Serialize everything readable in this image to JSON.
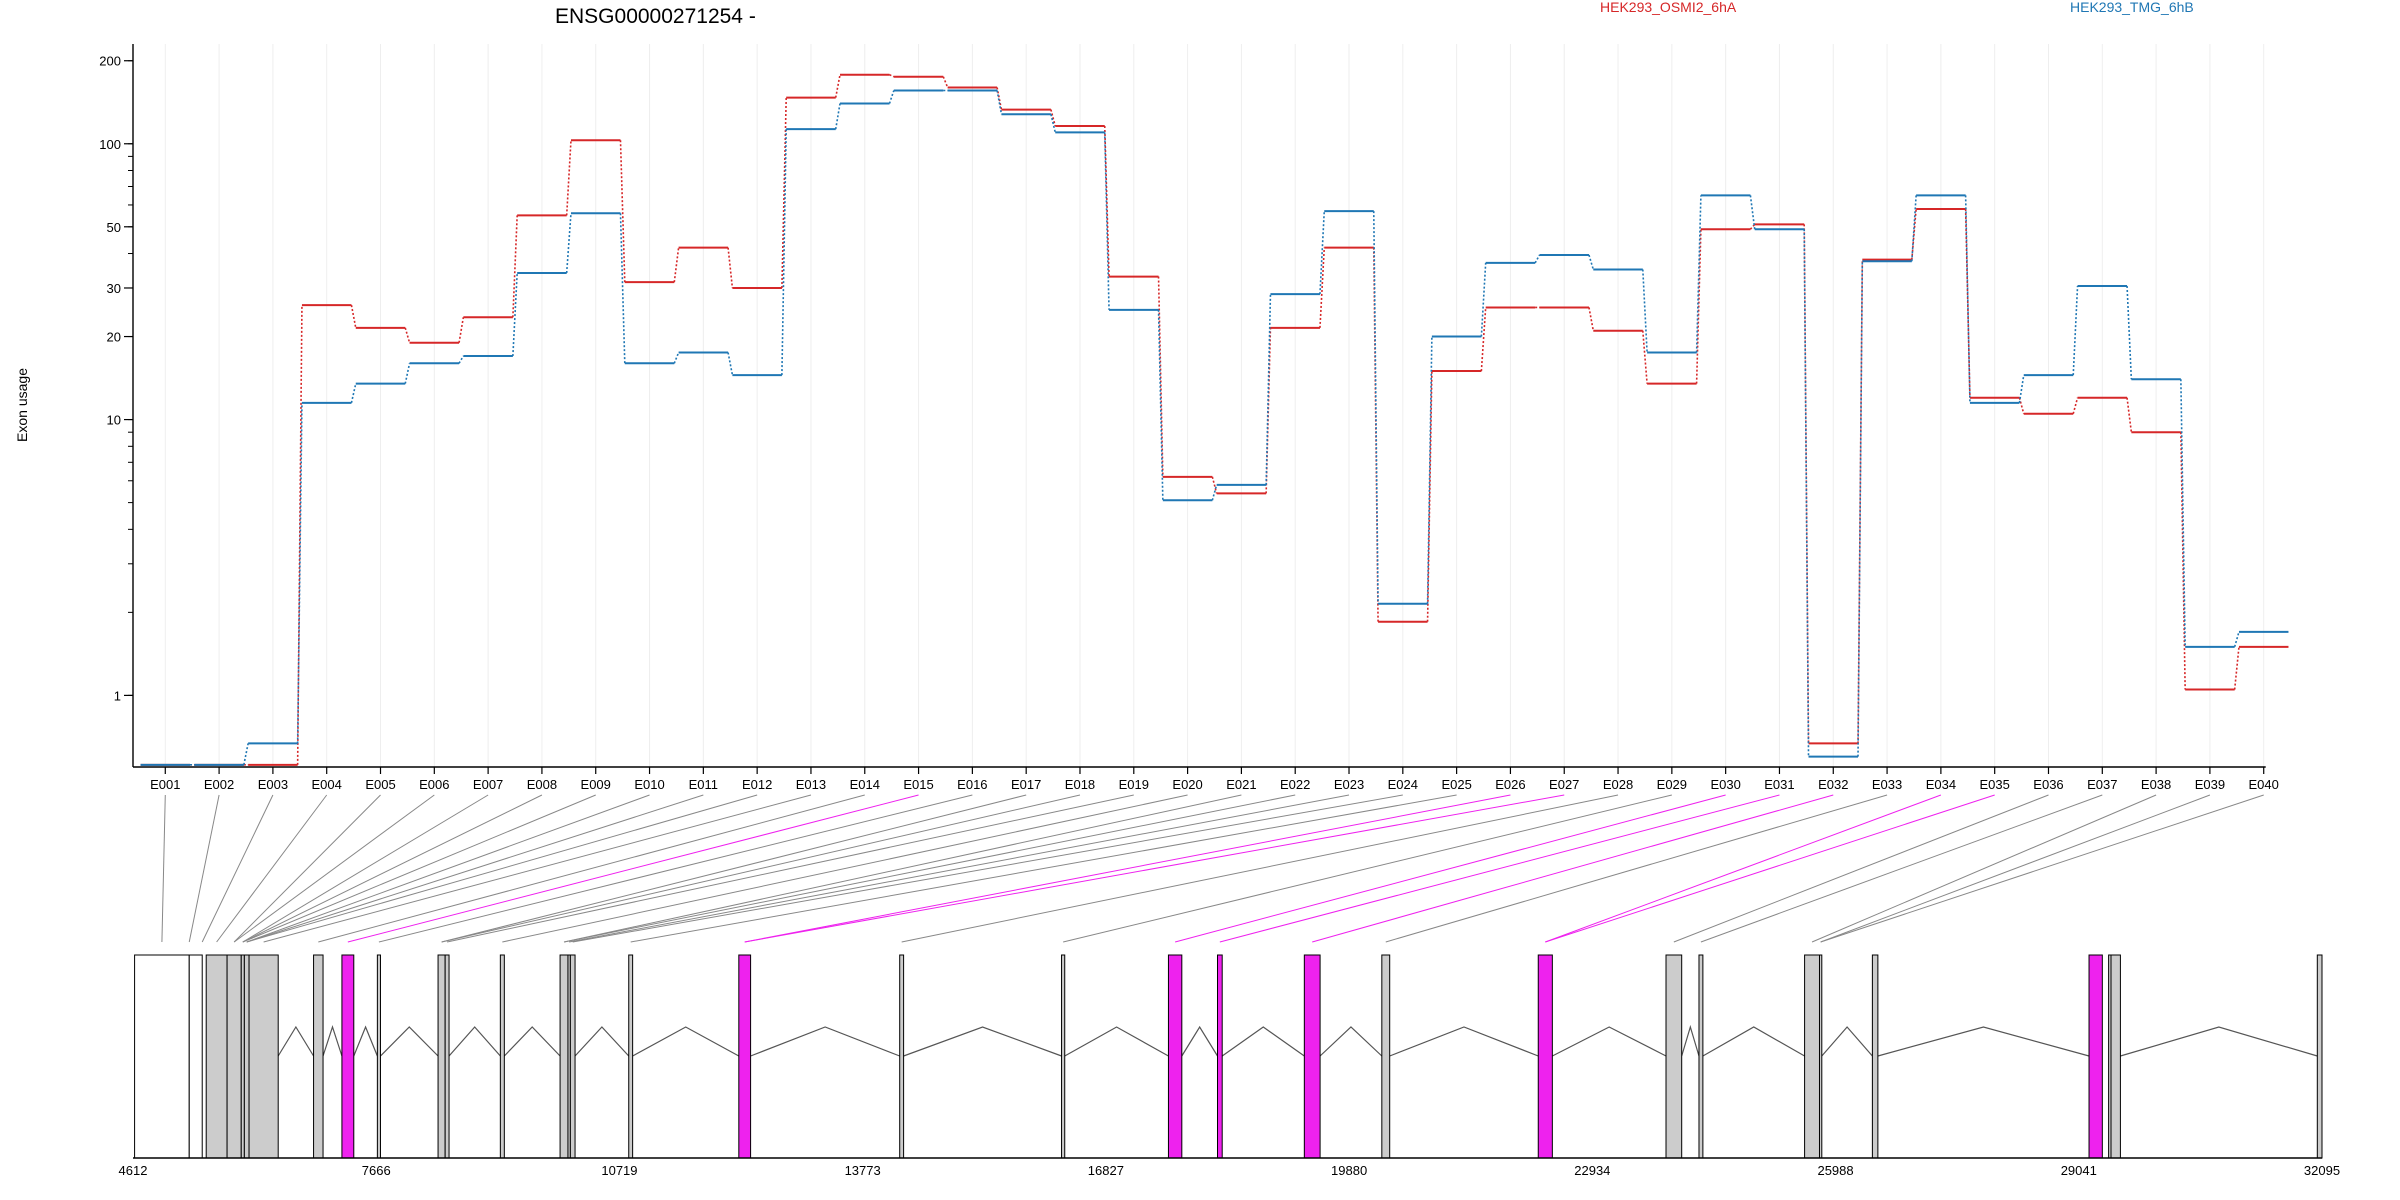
{
  "chart_data": {
    "type": "line",
    "title": "ENSG00000271254 -",
    "ylabel": "Exon usage",
    "xlabel": "",
    "y_scale": "log",
    "ylim": [
      0.55,
      230
    ],
    "y_ticks": [
      1,
      10,
      20,
      30,
      50,
      100,
      200
    ],
    "grid": "vertical",
    "legend_position": "top-right",
    "categories": [
      "E001",
      "E002",
      "E003",
      "E004",
      "E005",
      "E006",
      "E007",
      "E008",
      "E009",
      "E010",
      "E011",
      "E012",
      "E013",
      "E014",
      "E015",
      "E016",
      "E017",
      "E018",
      "E019",
      "E020",
      "E021",
      "E022",
      "E023",
      "E024",
      "E025",
      "E026",
      "E027",
      "E028",
      "E029",
      "E030",
      "E031",
      "E032",
      "E033",
      "E034",
      "E035",
      "E036",
      "E037",
      "E038",
      "E039",
      "E040"
    ],
    "series": [
      {
        "name": "HEK293_OSMI2_6hA",
        "color": "#d62728",
        "values": [
          0.56,
          0.56,
          0.56,
          26,
          21.5,
          19,
          23.5,
          55,
          103,
          31.5,
          42,
          30,
          147,
          178,
          175,
          160,
          133,
          116,
          33,
          6.2,
          5.4,
          21.5,
          42,
          1.85,
          15,
          25.5,
          25.5,
          21,
          13.5,
          49,
          51,
          0.67,
          38,
          58,
          12,
          10.5,
          12,
          9,
          1.05,
          1.5
        ]
      },
      {
        "name": "HEK293_TMG_6hB",
        "color": "#1f77b4",
        "values": [
          0.56,
          0.56,
          0.67,
          11.5,
          13.5,
          16,
          17,
          34,
          56,
          16,
          17.5,
          14.5,
          113,
          140,
          156,
          156,
          128,
          110,
          25,
          5.1,
          5.8,
          28.5,
          57,
          2.15,
          20,
          37,
          39.5,
          35,
          17.5,
          65,
          49,
          0.6,
          37.5,
          65,
          11.5,
          14.5,
          30.5,
          14,
          1.5,
          1.7
        ]
      }
    ],
    "gene_model": {
      "coordinate_ticks": [
        "4612",
        "7666",
        "10719",
        "13773",
        "16827",
        "19880",
        "22934",
        "25988",
        "29041",
        "32095"
      ],
      "coord_min": 4612,
      "coord_max": 32095,
      "colors": {
        "exon": "#cccccc",
        "highlight": "#ee22ee",
        "outline": "#000000",
        "connector_gray": "#888888"
      },
      "exons": [
        {
          "start": 4632,
          "end": 5318,
          "type": "white"
        },
        {
          "start": 5318,
          "end": 5481,
          "type": "white"
        },
        {
          "start": 5531,
          "end": 5793,
          "type": "gray"
        },
        {
          "start": 5793,
          "end": 5971,
          "type": "gray"
        },
        {
          "start": 5971,
          "end": 6010,
          "type": "gray"
        },
        {
          "start": 6010,
          "end": 6069,
          "type": "gray"
        },
        {
          "start": 6069,
          "end": 6435,
          "type": "gray"
        },
        {
          "start": 6879,
          "end": 6998,
          "type": "gray"
        },
        {
          "start": 7235,
          "end": 7384,
          "type": "highlight"
        },
        {
          "start": 7680,
          "end": 7719,
          "type": "gray"
        },
        {
          "start": 8442,
          "end": 8531,
          "type": "gray"
        },
        {
          "start": 8531,
          "end": 8580,
          "type": "gray"
        },
        {
          "start": 9224,
          "end": 9274,
          "type": "gray"
        },
        {
          "start": 9974,
          "end": 10073,
          "type": "gray"
        },
        {
          "start": 10073,
          "end": 10103,
          "type": "gray"
        },
        {
          "start": 10103,
          "end": 10162,
          "type": "gray"
        },
        {
          "start": 10836,
          "end": 10885,
          "type": "gray"
        },
        {
          "start": 12218,
          "end": 12366,
          "type": "highlight"
        },
        {
          "start": 14238,
          "end": 14287,
          "type": "gray"
        },
        {
          "start": 16270,
          "end": 16310,
          "type": "gray"
        },
        {
          "start": 17612,
          "end": 17780,
          "type": "highlight"
        },
        {
          "start": 18228,
          "end": 18287,
          "type": "highlight"
        },
        {
          "start": 19318,
          "end": 19516,
          "type": "highlight"
        },
        {
          "start": 20291,
          "end": 20390,
          "type": "gray"
        },
        {
          "start": 22255,
          "end": 22432,
          "type": "highlight"
        },
        {
          "start": 23859,
          "end": 24056,
          "type": "gray"
        },
        {
          "start": 24273,
          "end": 24322,
          "type": "gray"
        },
        {
          "start": 25599,
          "end": 25786,
          "type": "gray"
        },
        {
          "start": 25786,
          "end": 25815,
          "type": "gray"
        },
        {
          "start": 26450,
          "end": 26519,
          "type": "gray"
        },
        {
          "start": 29170,
          "end": 29337,
          "type": "highlight"
        },
        {
          "start": 29416,
          "end": 29446,
          "type": "gray"
        },
        {
          "start": 29446,
          "end": 29564,
          "type": "gray"
        },
        {
          "start": 32036,
          "end": 32095,
          "type": "gray"
        }
      ],
      "bin_exons": [
        0,
        0,
        1,
        2,
        3,
        3,
        4,
        4,
        4,
        5,
        5,
        5,
        6,
        7,
        8,
        9,
        10,
        10,
        11,
        12,
        13,
        13,
        14,
        15,
        16,
        17,
        17,
        18,
        19,
        20,
        21,
        22,
        23,
        24,
        24,
        25,
        26,
        27,
        28,
        28
      ],
      "bin_extra": {
        "1": 0,
        "2": 1
      }
    }
  }
}
